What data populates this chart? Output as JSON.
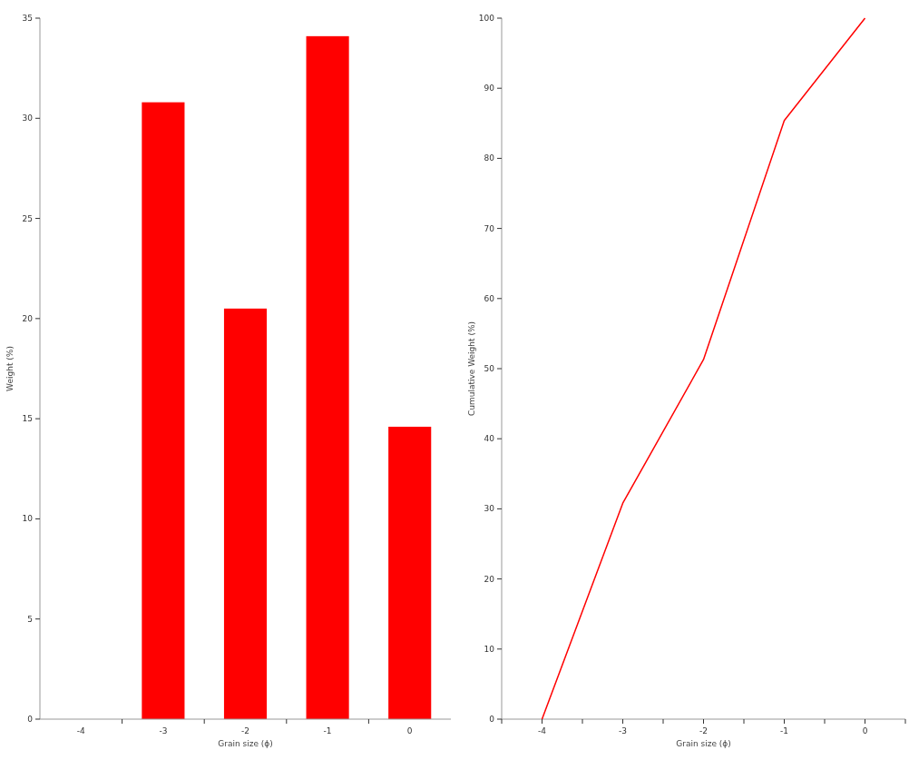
{
  "chart_data": [
    {
      "type": "bar",
      "categories": [
        "-4",
        "-3",
        "-2",
        "-1",
        "0"
      ],
      "values": [
        0,
        30.8,
        20.5,
        34.1,
        14.6
      ],
      "color": "#ff0000",
      "ylim": [
        0,
        35
      ],
      "yticks": [
        0,
        5,
        10,
        15,
        20,
        25,
        30,
        35
      ],
      "xlabel": "Grain size (ϕ)",
      "ylabel": "Weight (%)",
      "grid": false
    },
    {
      "type": "line",
      "x": [
        -4,
        -3,
        -2,
        -1,
        0
      ],
      "values": [
        0,
        30.8,
        51.3,
        85.4,
        100
      ],
      "color": "#ff0000",
      "xlim": [
        -4.5,
        0.5
      ],
      "xticks": [
        {
          "value": -4.5,
          "label": null
        },
        -4,
        {
          "value": -3.5,
          "label": null
        },
        -3,
        {
          "value": -2.5,
          "label": null
        },
        -2,
        {
          "value": -1.5,
          "label": null
        },
        -1,
        {
          "value": -0.5,
          "label": null
        },
        0,
        {
          "value": 0.5,
          "label": null
        }
      ],
      "ylim": [
        0,
        100
      ],
      "yticks": [
        0,
        10,
        20,
        30,
        40,
        50,
        60,
        70,
        80,
        90,
        100
      ],
      "xlabel": "Grain size (ϕ)",
      "ylabel": "Cumulative Weight (%)",
      "grid": false,
      "marker": "none",
      "line_style": "solid"
    }
  ]
}
